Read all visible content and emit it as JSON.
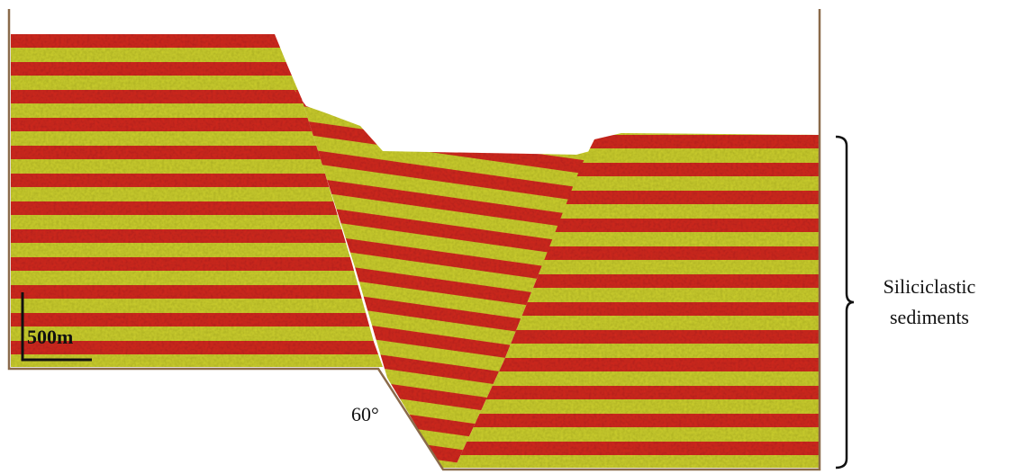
{
  "scale_bar": {
    "label": "500m"
  },
  "fault_angle": {
    "label": "60°"
  },
  "bracket_label": {
    "lines": [
      "Siliciclastic",
      "sediments"
    ]
  }
}
